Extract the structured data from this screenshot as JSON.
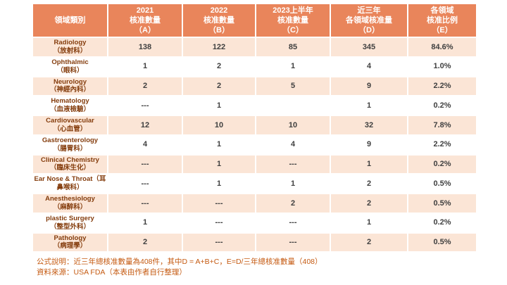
{
  "colors": {
    "header_bg": "#E9855B",
    "header_text": "#FFFFFF",
    "row_bg": "#FFFFFF",
    "row_alt_bg": "#FBE5D6",
    "category_text": "#843C0C",
    "value_text": "#404040",
    "footer_text": "#C55A11"
  },
  "table": {
    "headers": [
      "領域類別",
      "2021\n核准數量\n（A）",
      "2022\n核准數量\n（B）",
      "2023上半年\n核准數量\n（C）",
      "近三年\n各領域核准量\n（D）",
      "各領域\n核准比例\n（E）"
    ],
    "rows": [
      {
        "category": "Radiology\n（放射科）",
        "values": [
          "138",
          "122",
          "85",
          "345",
          "84.6%"
        ]
      },
      {
        "category": "Ophthalmic\n（眼科）",
        "values": [
          "1",
          "2",
          "1",
          "4",
          "1.0%"
        ]
      },
      {
        "category": "Neurology\n（神經內科）",
        "values": [
          "2",
          "2",
          "5",
          "9",
          "2.2%"
        ]
      },
      {
        "category": "Hematology\n（血液檢驗）",
        "values": [
          "---",
          "1",
          "",
          "1",
          "0.2%"
        ]
      },
      {
        "category": "Cardiovascular\n（心血管）",
        "values": [
          "12",
          "10",
          "10",
          "32",
          "7.8%"
        ]
      },
      {
        "category": "Gastroenterology\n（腸胃科）",
        "values": [
          "4",
          "1",
          "4",
          "9",
          "2.2%"
        ]
      },
      {
        "category": "Clinical Chemistry\n（臨床生化）",
        "values": [
          "---",
          "1",
          "---",
          "1",
          "0.2%"
        ]
      },
      {
        "category": "Ear Nose & Throat（耳鼻喉科）",
        "values": [
          "---",
          "1",
          "1",
          "2",
          "0.5%"
        ]
      },
      {
        "category": "Anesthesiology\n（麻醉科）",
        "values": [
          "---",
          "---",
          "2",
          "2",
          "0.5%"
        ]
      },
      {
        "category": "plastic Surgery\n（整型外科）",
        "values": [
          "1",
          "---",
          "---",
          "1",
          "0.2%"
        ]
      },
      {
        "category": "Pathology\n（病理學）",
        "values": [
          "2",
          "---",
          "---",
          "2",
          "0.5%"
        ]
      }
    ]
  },
  "footer": {
    "line1": "公式說明：近三年總核准數量為408件，其中D = A+B+C，E=D/三年總核准數量（408）",
    "line2": "資料來源：USA FDA（本表由作者自行整理）"
  },
  "chart_data": {
    "type": "table",
    "columns": [
      "領域類別",
      "2021核准數量（A）",
      "2022核准數量（B）",
      "2023上半年核准數量（C）",
      "近三年各領域核准量（D）",
      "各領域核准比例（E）"
    ],
    "rows": [
      [
        "Radiology（放射科）",
        138,
        122,
        85,
        345,
        "84.6%"
      ],
      [
        "Ophthalmic（眼科）",
        1,
        2,
        1,
        4,
        "1.0%"
      ],
      [
        "Neurology（神經內科）",
        2,
        2,
        5,
        9,
        "2.2%"
      ],
      [
        "Hematology（血液檢驗）",
        null,
        1,
        null,
        1,
        "0.2%"
      ],
      [
        "Cardiovascular（心血管）",
        12,
        10,
        10,
        32,
        "7.8%"
      ],
      [
        "Gastroenterology（腸胃科）",
        4,
        1,
        4,
        9,
        "2.2%"
      ],
      [
        "Clinical Chemistry（臨床生化）",
        null,
        1,
        null,
        1,
        "0.2%"
      ],
      [
        "Ear Nose & Throat（耳鼻喉科）",
        null,
        1,
        1,
        2,
        "0.5%"
      ],
      [
        "Anesthesiology（麻醉科）",
        null,
        null,
        2,
        2,
        "0.5%"
      ],
      [
        "plastic Surgery（整型外科）",
        1,
        null,
        null,
        1,
        "0.2%"
      ],
      [
        "Pathology（病理學）",
        2,
        null,
        null,
        2,
        "0.5%"
      ]
    ],
    "total_three_year_approvals": 408
  }
}
